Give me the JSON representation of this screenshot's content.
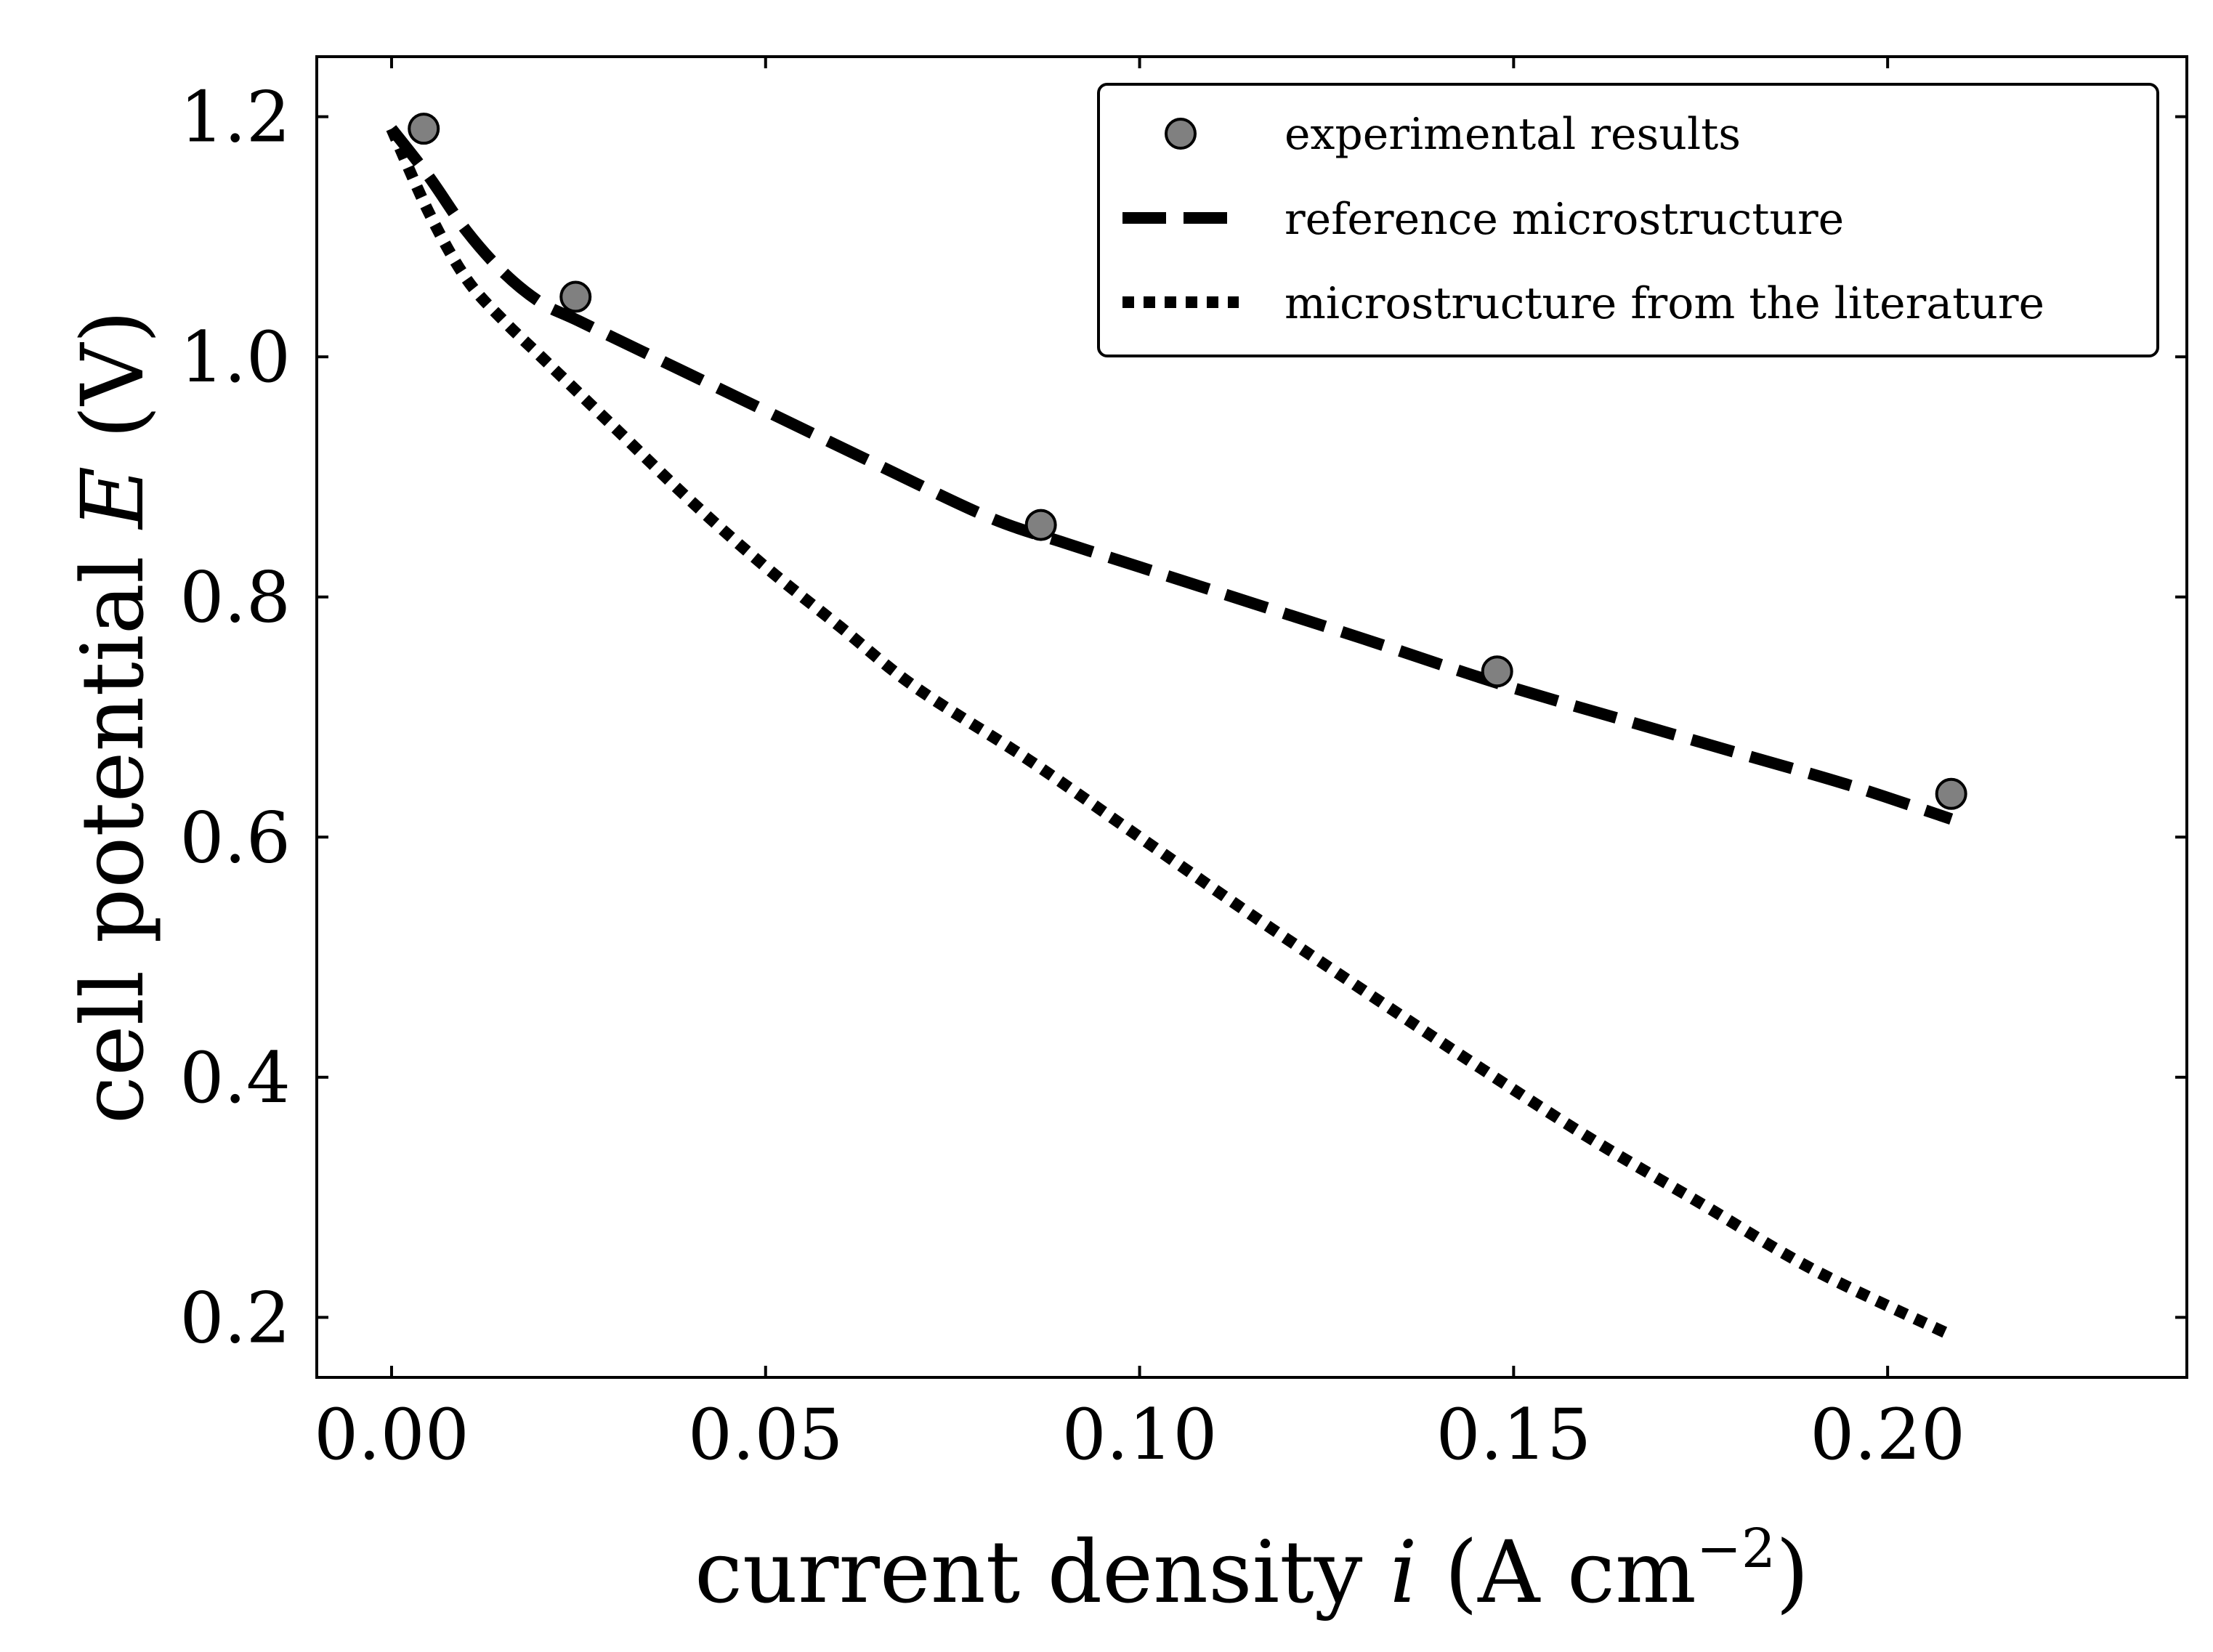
{
  "chart_data": {
    "type": "line",
    "title": "",
    "xlabel": {
      "prefix": "current density ",
      "var": "i",
      "units_open": " (A cm",
      "units_exp": "−2",
      "units_close": ")"
    },
    "ylabel": {
      "prefix": "cell potential ",
      "var": "E",
      "units": " (V)"
    },
    "xlim": [
      -0.01,
      0.24
    ],
    "ylim": [
      0.15,
      1.25
    ],
    "xticks": [
      0.0,
      0.05,
      0.1,
      0.15,
      0.2
    ],
    "xtick_labels": [
      "0.00",
      "0.05",
      "0.10",
      "0.15",
      "0.20"
    ],
    "yticks": [
      0.2,
      0.4,
      0.6,
      0.8,
      1.0,
      1.2
    ],
    "ytick_labels": [
      "0.2",
      "0.4",
      "0.6",
      "0.8",
      "1.0",
      "1.2"
    ],
    "grid": false,
    "legend_position": "top-right",
    "series": [
      {
        "name": "experimental results",
        "style": "markers",
        "color": "#808080",
        "edge_color": "#000000",
        "x": [
          0.0043,
          0.0246,
          0.0868,
          0.1478,
          0.2085
        ],
        "y": [
          1.19,
          1.05,
          0.86,
          0.738,
          0.636
        ]
      },
      {
        "name": "reference microstructure",
        "style": "dashed",
        "color": "#000000",
        "x": [
          0.0,
          0.005,
          0.01,
          0.015,
          0.02,
          0.025,
          0.035,
          0.05,
          0.065,
          0.08,
          0.09,
          0.1,
          0.115,
          0.13,
          0.148,
          0.165,
          0.18,
          0.195,
          0.2085
        ],
        "y": [
          1.19,
          1.15,
          1.105,
          1.07,
          1.045,
          1.03,
          1.0,
          0.955,
          0.91,
          0.866,
          0.845,
          0.825,
          0.795,
          0.765,
          0.728,
          0.697,
          0.67,
          0.643,
          0.615
        ]
      },
      {
        "name": "microstructure from the literature",
        "style": "dotted",
        "color": "#000000",
        "x": [
          0.0,
          0.005,
          0.01,
          0.015,
          0.02,
          0.03,
          0.04,
          0.05,
          0.06,
          0.07,
          0.085,
          0.1,
          0.115,
          0.13,
          0.145,
          0.16,
          0.175,
          0.19,
          0.2085
        ],
        "y": [
          1.19,
          1.12,
          1.065,
          1.03,
          1.0,
          0.94,
          0.88,
          0.825,
          0.775,
          0.725,
          0.665,
          0.6,
          0.535,
          0.472,
          0.41,
          0.35,
          0.295,
          0.24,
          0.185
        ]
      }
    ]
  }
}
